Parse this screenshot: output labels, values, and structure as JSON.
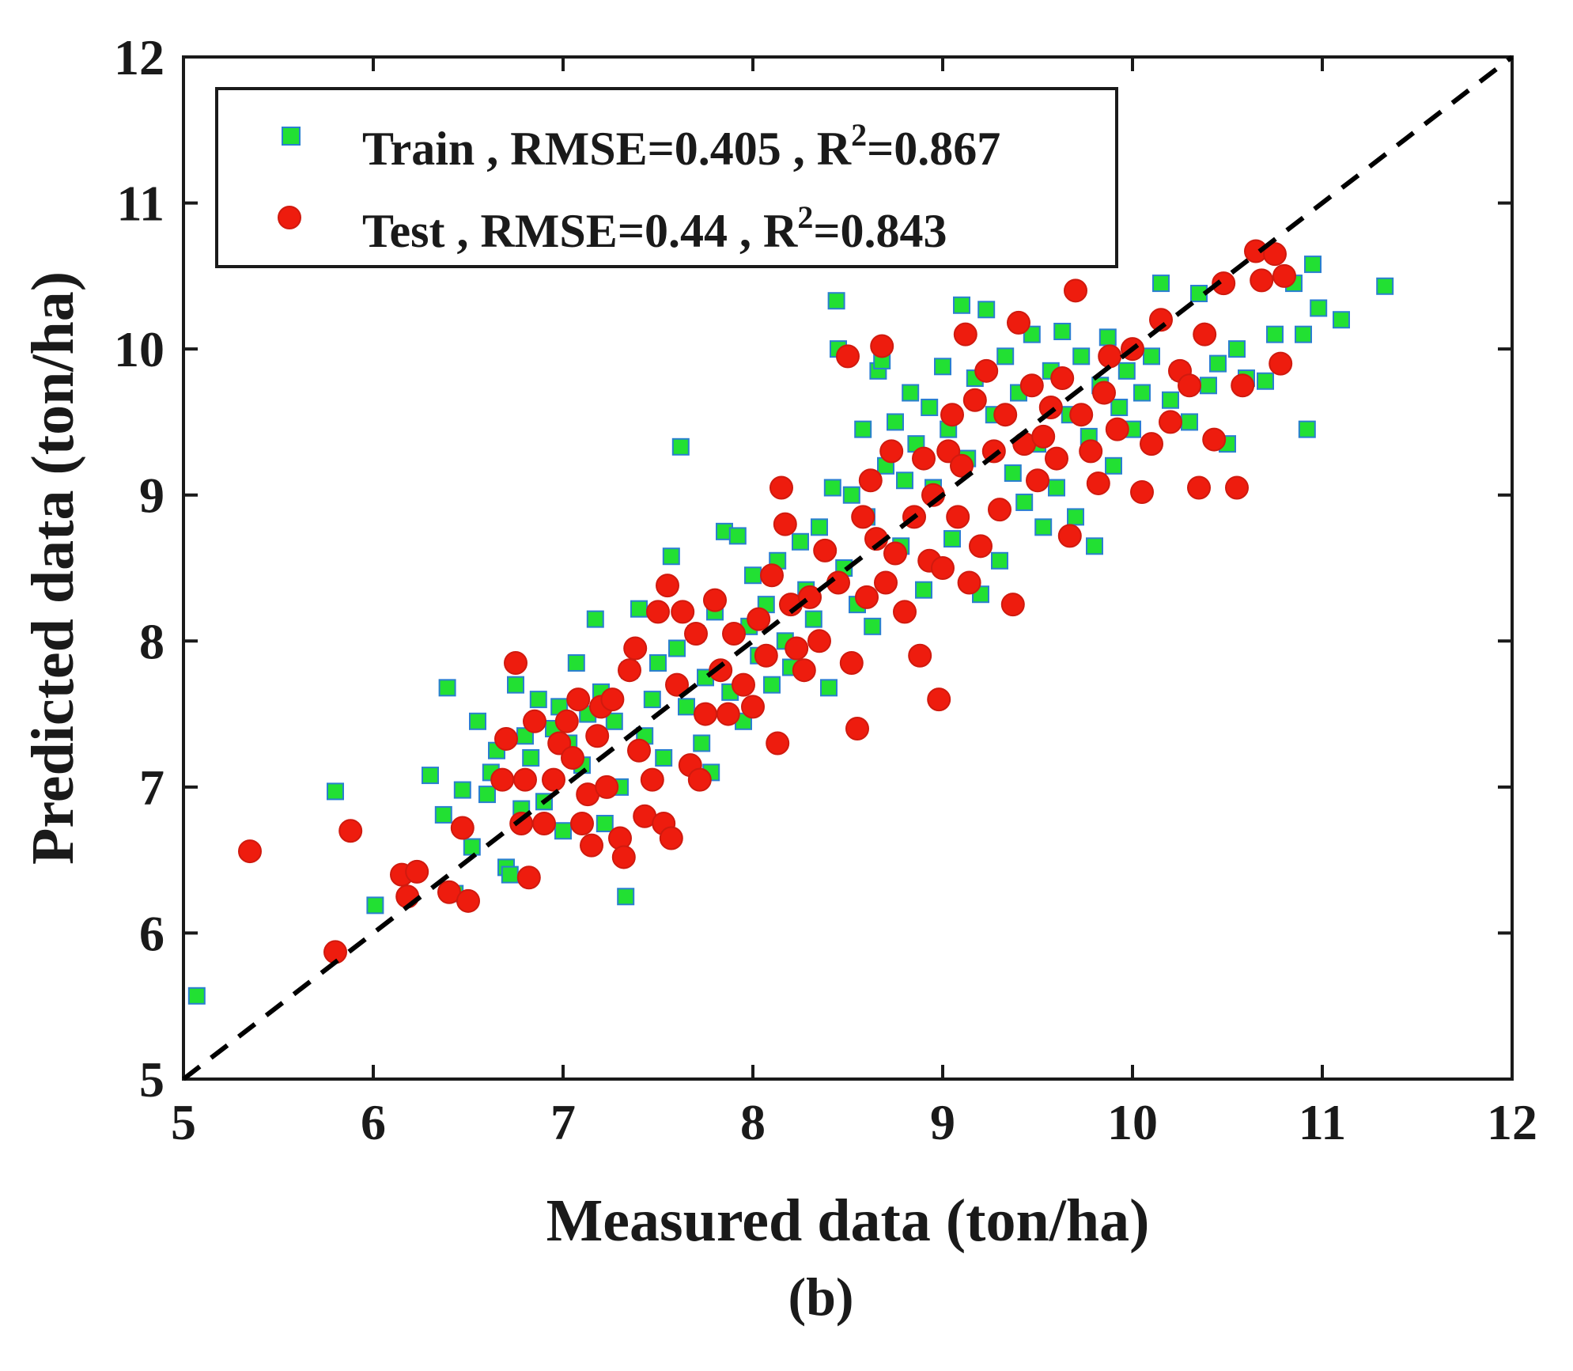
{
  "chart_data": {
    "type": "scatter",
    "xlabel": "Measured data (ton/ha)",
    "ylabel": "Predicted data (ton/ha)",
    "xlim": [
      5,
      12
    ],
    "ylim": [
      5,
      12
    ],
    "xticks": [
      "5",
      "6",
      "7",
      "8",
      "9",
      "10",
      "11",
      "12"
    ],
    "yticks": [
      "5",
      "6",
      "7",
      "8",
      "9",
      "10",
      "11",
      "12"
    ],
    "grid": false,
    "legend_position": "top-left",
    "panel_label": "(b)",
    "reference_line": {
      "from": [
        5,
        5
      ],
      "to": [
        12,
        12
      ],
      "style": "dashed",
      "color": "#000000"
    },
    "series": [
      {
        "name": "Train",
        "legend_text": "Train , RMSE=0.405 , R",
        "legend_suffix": "=0.867",
        "legend_sup": "2",
        "marker": "square",
        "color": "#22e033",
        "edge_color": "#2a7fd0",
        "points": [
          [
            5.07,
            5.57
          ],
          [
            5.8,
            6.97
          ],
          [
            6.01,
            6.19
          ],
          [
            6.3,
            7.08
          ],
          [
            6.37,
            6.81
          ],
          [
            6.39,
            7.68
          ],
          [
            6.43,
            6.27
          ],
          [
            6.47,
            6.98
          ],
          [
            6.52,
            6.59
          ],
          [
            6.55,
            7.45
          ],
          [
            6.6,
            6.95
          ],
          [
            6.62,
            7.1
          ],
          [
            6.65,
            7.25
          ],
          [
            6.7,
            6.45
          ],
          [
            6.72,
            6.4
          ],
          [
            6.75,
            7.7
          ],
          [
            6.78,
            6.85
          ],
          [
            6.8,
            7.35
          ],
          [
            6.83,
            7.2
          ],
          [
            6.87,
            7.6
          ],
          [
            6.9,
            6.9
          ],
          [
            6.95,
            7.4
          ],
          [
            6.98,
            7.55
          ],
          [
            7.0,
            6.7
          ],
          [
            7.03,
            7.3
          ],
          [
            7.07,
            7.85
          ],
          [
            7.1,
            7.15
          ],
          [
            7.13,
            7.5
          ],
          [
            7.17,
            8.15
          ],
          [
            7.2,
            7.65
          ],
          [
            7.22,
            6.75
          ],
          [
            7.27,
            7.45
          ],
          [
            7.3,
            7.0
          ],
          [
            7.33,
            6.25
          ],
          [
            7.35,
            7.8
          ],
          [
            7.4,
            8.22
          ],
          [
            7.43,
            7.35
          ],
          [
            7.47,
            7.6
          ],
          [
            7.5,
            7.85
          ],
          [
            7.53,
            7.2
          ],
          [
            7.57,
            8.58
          ],
          [
            7.6,
            7.95
          ],
          [
            7.62,
            9.33
          ],
          [
            7.65,
            7.55
          ],
          [
            7.7,
            8.05
          ],
          [
            7.73,
            7.3
          ],
          [
            7.75,
            7.75
          ],
          [
            7.78,
            7.1
          ],
          [
            7.8,
            8.2
          ],
          [
            7.85,
            8.75
          ],
          [
            7.88,
            7.65
          ],
          [
            7.92,
            8.72
          ],
          [
            7.95,
            7.45
          ],
          [
            7.98,
            8.1
          ],
          [
            8.0,
            8.45
          ],
          [
            8.03,
            7.9
          ],
          [
            8.07,
            8.25
          ],
          [
            8.1,
            7.7
          ],
          [
            8.13,
            8.55
          ],
          [
            8.17,
            8.0
          ],
          [
            8.2,
            7.82
          ],
          [
            8.25,
            8.68
          ],
          [
            8.28,
            8.35
          ],
          [
            8.32,
            8.15
          ],
          [
            8.35,
            8.78
          ],
          [
            8.4,
            7.68
          ],
          [
            8.42,
            9.05
          ],
          [
            8.44,
            10.33
          ],
          [
            8.45,
            10.0
          ],
          [
            8.48,
            8.5
          ],
          [
            8.52,
            9.0
          ],
          [
            8.55,
            8.25
          ],
          [
            8.58,
            9.45
          ],
          [
            8.6,
            8.85
          ],
          [
            8.63,
            8.1
          ],
          [
            8.66,
            9.85
          ],
          [
            8.68,
            9.92
          ],
          [
            8.7,
            9.2
          ],
          [
            8.75,
            9.5
          ],
          [
            8.78,
            8.65
          ],
          [
            8.8,
            9.1
          ],
          [
            8.83,
            9.7
          ],
          [
            8.86,
            9.35
          ],
          [
            8.9,
            8.35
          ],
          [
            8.93,
            9.6
          ],
          [
            8.95,
            9.05
          ],
          [
            9.0,
            9.88
          ],
          [
            9.03,
            9.45
          ],
          [
            9.05,
            8.7
          ],
          [
            9.1,
            10.3
          ],
          [
            9.13,
            9.25
          ],
          [
            9.17,
            9.8
          ],
          [
            9.2,
            8.32
          ],
          [
            9.23,
            10.27
          ],
          [
            9.27,
            9.55
          ],
          [
            9.3,
            8.55
          ],
          [
            9.33,
            9.95
          ],
          [
            9.37,
            9.15
          ],
          [
            9.4,
            9.7
          ],
          [
            9.43,
            8.95
          ],
          [
            9.47,
            10.1
          ],
          [
            9.5,
            9.35
          ],
          [
            9.53,
            8.78
          ],
          [
            9.57,
            9.85
          ],
          [
            9.6,
            9.05
          ],
          [
            9.63,
            10.12
          ],
          [
            9.67,
            9.55
          ],
          [
            9.7,
            8.85
          ],
          [
            9.73,
            9.95
          ],
          [
            9.77,
            9.4
          ],
          [
            9.8,
            8.65
          ],
          [
            9.83,
            9.75
          ],
          [
            9.87,
            10.08
          ],
          [
            9.9,
            9.2
          ],
          [
            9.93,
            9.6
          ],
          [
            9.97,
            9.85
          ],
          [
            10.0,
            9.45
          ],
          [
            10.05,
            9.7
          ],
          [
            10.1,
            9.95
          ],
          [
            10.15,
            10.45
          ],
          [
            10.2,
            9.65
          ],
          [
            10.25,
            9.85
          ],
          [
            10.3,
            9.5
          ],
          [
            10.35,
            10.38
          ],
          [
            10.4,
            9.75
          ],
          [
            10.45,
            9.9
          ],
          [
            10.5,
            9.35
          ],
          [
            10.55,
            10.0
          ],
          [
            10.6,
            9.8
          ],
          [
            10.7,
            9.78
          ],
          [
            10.75,
            10.1
          ],
          [
            10.85,
            10.45
          ],
          [
            10.9,
            10.1
          ],
          [
            10.92,
            9.45
          ],
          [
            10.95,
            10.58
          ],
          [
            10.98,
            10.28
          ],
          [
            11.1,
            10.2
          ],
          [
            11.33,
            10.43
          ]
        ]
      },
      {
        "name": "Test",
        "legend_text": "Test , RMSE=0.44 , R",
        "legend_suffix": "=0.843",
        "legend_sup": "2",
        "marker": "circle",
        "color": "#ee1c0e",
        "edge_color": "#d01a0e",
        "points": [
          [
            5.35,
            6.56
          ],
          [
            5.8,
            5.87
          ],
          [
            5.88,
            6.7
          ],
          [
            6.15,
            6.4
          ],
          [
            6.18,
            6.25
          ],
          [
            6.23,
            6.42
          ],
          [
            6.4,
            6.28
          ],
          [
            6.47,
            6.72
          ],
          [
            6.5,
            6.22
          ],
          [
            6.68,
            7.05
          ],
          [
            6.7,
            7.33
          ],
          [
            6.75,
            7.85
          ],
          [
            6.78,
            6.75
          ],
          [
            6.8,
            7.05
          ],
          [
            6.82,
            6.38
          ],
          [
            6.85,
            7.45
          ],
          [
            6.9,
            6.75
          ],
          [
            6.95,
            7.05
          ],
          [
            6.98,
            7.3
          ],
          [
            7.02,
            7.45
          ],
          [
            7.05,
            7.2
          ],
          [
            7.08,
            7.6
          ],
          [
            7.1,
            6.75
          ],
          [
            7.13,
            6.95
          ],
          [
            7.15,
            6.6
          ],
          [
            7.18,
            7.35
          ],
          [
            7.2,
            7.55
          ],
          [
            7.23,
            7.0
          ],
          [
            7.26,
            7.6
          ],
          [
            7.3,
            6.65
          ],
          [
            7.32,
            6.52
          ],
          [
            7.35,
            7.8
          ],
          [
            7.38,
            7.95
          ],
          [
            7.4,
            7.25
          ],
          [
            7.43,
            6.8
          ],
          [
            7.47,
            7.05
          ],
          [
            7.5,
            8.2
          ],
          [
            7.53,
            6.75
          ],
          [
            7.55,
            8.38
          ],
          [
            7.57,
            6.65
          ],
          [
            7.6,
            7.7
          ],
          [
            7.63,
            8.2
          ],
          [
            7.67,
            7.15
          ],
          [
            7.7,
            8.05
          ],
          [
            7.72,
            7.05
          ],
          [
            7.75,
            7.5
          ],
          [
            7.8,
            8.28
          ],
          [
            7.83,
            7.8
          ],
          [
            7.87,
            7.5
          ],
          [
            7.9,
            8.05
          ],
          [
            7.95,
            7.7
          ],
          [
            8.0,
            7.55
          ],
          [
            8.03,
            8.15
          ],
          [
            8.07,
            7.9
          ],
          [
            8.1,
            8.45
          ],
          [
            8.13,
            7.3
          ],
          [
            8.15,
            9.05
          ],
          [
            8.17,
            8.8
          ],
          [
            8.2,
            8.25
          ],
          [
            8.23,
            7.95
          ],
          [
            8.27,
            7.8
          ],
          [
            8.3,
            8.3
          ],
          [
            8.35,
            8.0
          ],
          [
            8.38,
            8.62
          ],
          [
            8.45,
            8.4
          ],
          [
            8.5,
            9.95
          ],
          [
            8.52,
            7.85
          ],
          [
            8.55,
            7.4
          ],
          [
            8.58,
            8.85
          ],
          [
            8.6,
            8.3
          ],
          [
            8.62,
            9.1
          ],
          [
            8.65,
            8.7
          ],
          [
            8.68,
            10.02
          ],
          [
            8.7,
            8.4
          ],
          [
            8.73,
            9.3
          ],
          [
            8.75,
            8.6
          ],
          [
            8.8,
            8.2
          ],
          [
            8.85,
            8.85
          ],
          [
            8.88,
            7.9
          ],
          [
            8.9,
            9.25
          ],
          [
            8.93,
            8.55
          ],
          [
            8.95,
            9.0
          ],
          [
            8.98,
            7.6
          ],
          [
            9.0,
            8.5
          ],
          [
            9.03,
            9.3
          ],
          [
            9.05,
            9.55
          ],
          [
            9.08,
            8.85
          ],
          [
            9.1,
            9.2
          ],
          [
            9.12,
            10.1
          ],
          [
            9.14,
            8.4
          ],
          [
            9.17,
            9.65
          ],
          [
            9.2,
            8.65
          ],
          [
            9.23,
            9.85
          ],
          [
            9.27,
            9.3
          ],
          [
            9.3,
            8.9
          ],
          [
            9.33,
            9.55
          ],
          [
            9.37,
            8.25
          ],
          [
            9.4,
            10.18
          ],
          [
            9.43,
            9.35
          ],
          [
            9.47,
            9.75
          ],
          [
            9.5,
            9.1
          ],
          [
            9.53,
            9.4
          ],
          [
            9.57,
            9.6
          ],
          [
            9.6,
            9.25
          ],
          [
            9.63,
            9.8
          ],
          [
            9.67,
            8.72
          ],
          [
            9.7,
            10.4
          ],
          [
            9.73,
            9.55
          ],
          [
            9.78,
            9.3
          ],
          [
            9.82,
            9.08
          ],
          [
            9.85,
            9.7
          ],
          [
            9.88,
            9.95
          ],
          [
            9.92,
            9.45
          ],
          [
            10.0,
            10.0
          ],
          [
            10.05,
            9.02
          ],
          [
            10.1,
            9.35
          ],
          [
            10.15,
            10.2
          ],
          [
            10.2,
            9.5
          ],
          [
            10.25,
            9.85
          ],
          [
            10.3,
            9.75
          ],
          [
            10.35,
            9.05
          ],
          [
            10.38,
            10.1
          ],
          [
            10.43,
            9.38
          ],
          [
            10.48,
            10.45
          ],
          [
            10.55,
            9.05
          ],
          [
            10.58,
            9.75
          ],
          [
            10.65,
            10.67
          ],
          [
            10.68,
            10.47
          ],
          [
            10.75,
            10.65
          ],
          [
            10.78,
            9.9
          ],
          [
            10.8,
            10.5
          ]
        ]
      }
    ]
  }
}
